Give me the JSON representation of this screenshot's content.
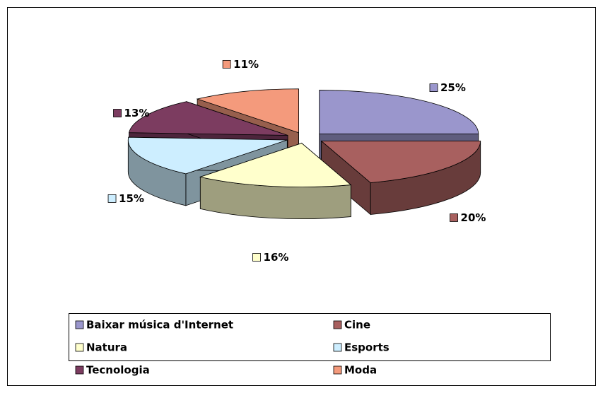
{
  "chart_data": {
    "type": "pie3d",
    "categories": [
      "Baixar música d'Internet",
      "Cine",
      "Natura",
      "Esports",
      "Tecnologia",
      "Moda"
    ],
    "values": [
      25,
      20,
      16,
      15,
      13,
      11
    ],
    "value_labels": [
      "25%",
      "20%",
      "16%",
      "15%",
      "13%",
      "11%"
    ],
    "colors": [
      "#9a96cc",
      "#a8605f",
      "#ffffcc",
      "#cdeeff",
      "#7c3c60",
      "#f49a7c"
    ],
    "legend": "bottom"
  }
}
